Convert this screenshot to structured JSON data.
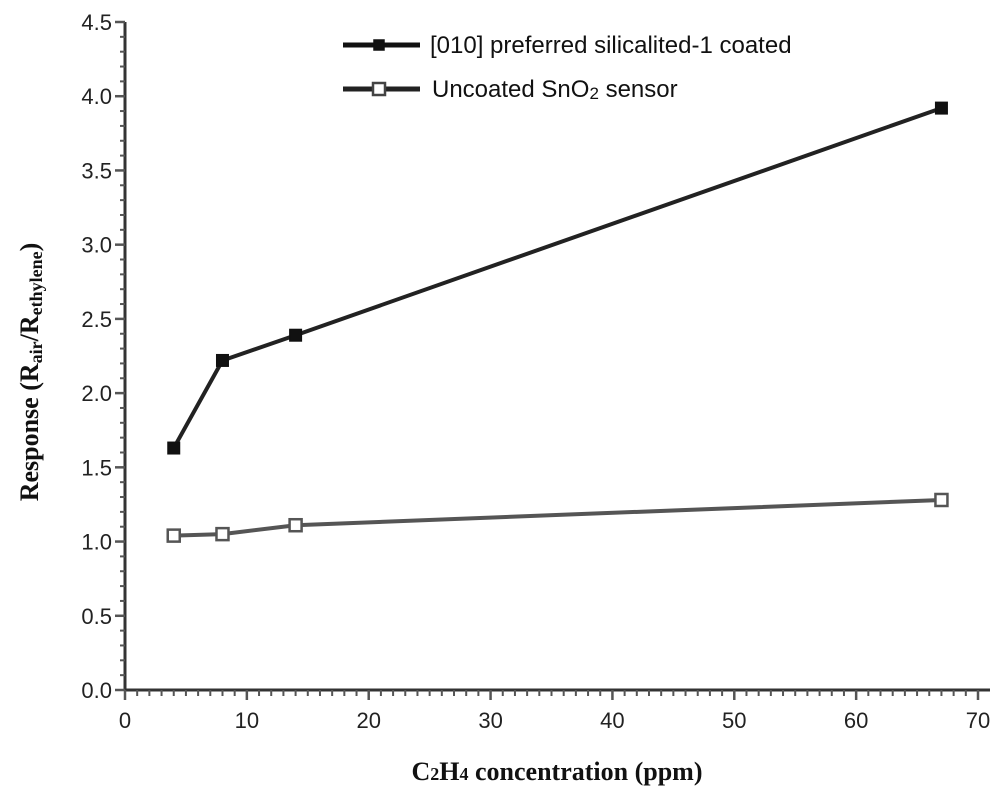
{
  "chart_data": {
    "type": "line",
    "x_axis": {
      "label_main": "C",
      "label_sub1": "2",
      "label_mid": "H",
      "label_sub2": "4",
      "label_tail": " concentration (ppm)",
      "range": [
        0,
        70
      ],
      "ticks": [
        "0",
        "10",
        "20",
        "30",
        "40",
        "50",
        "60",
        "70"
      ],
      "tick_values": [
        0,
        10,
        20,
        30,
        40,
        50,
        60,
        70
      ]
    },
    "y_axis": {
      "label_main": "Response (R",
      "label_sub1": "air",
      "label_mid": "/R",
      "label_sub2": "ethylene",
      "label_tail": ")",
      "range": [
        0,
        4.5
      ],
      "ticks": [
        "0.0",
        "0.5",
        "1.0",
        "1.5",
        "2.0",
        "2.5",
        "3.0",
        "3.5",
        "4.0",
        "4.5"
      ],
      "tick_values": [
        0,
        0.5,
        1.0,
        1.5,
        2.0,
        2.5,
        3.0,
        3.5,
        4.0,
        4.5
      ]
    },
    "grid": false,
    "legend_position": "top-right",
    "series": [
      {
        "name": "[010] preferred silicalited-1 coated",
        "marker": "filled-square",
        "color": "#222222",
        "x": [
          4,
          8,
          14,
          67
        ],
        "y": [
          1.63,
          2.22,
          2.39,
          3.92
        ]
      },
      {
        "name_main": "Uncoated SnO",
        "name_sub": "2",
        "name_tail": " sensor",
        "marker": "open-square",
        "color": "#555555",
        "x": [
          4,
          8,
          14,
          67
        ],
        "y": [
          1.04,
          1.05,
          1.11,
          1.28
        ]
      }
    ]
  }
}
